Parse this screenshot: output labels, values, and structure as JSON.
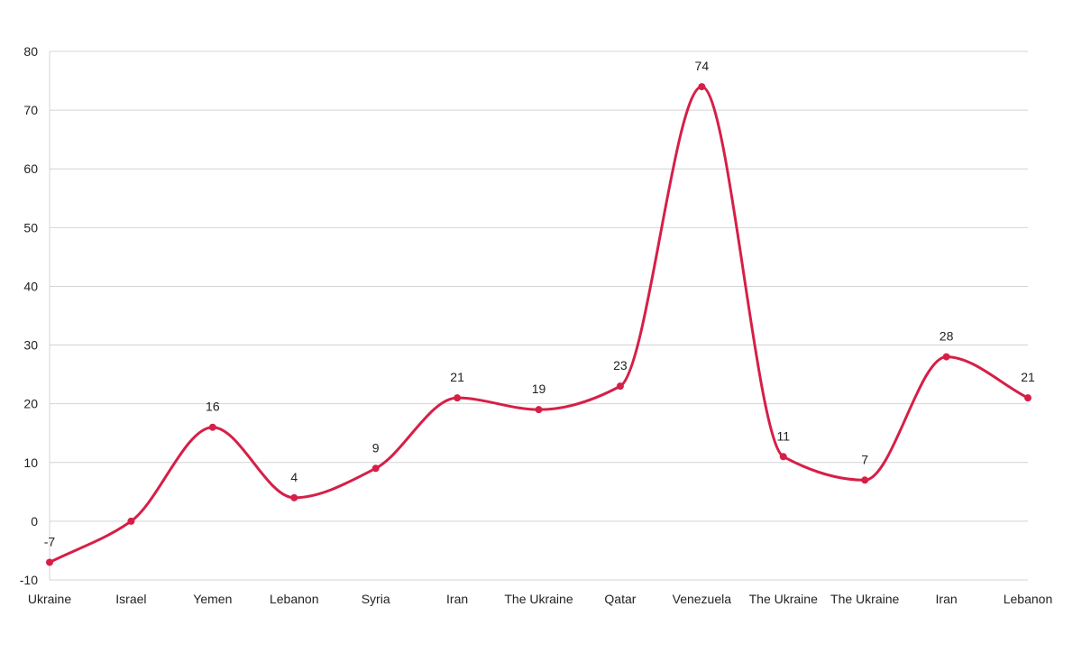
{
  "chart_data": {
    "type": "line",
    "categories": [
      "Ukraine",
      "Israel",
      "Yemen",
      "Lebanon",
      "Syria",
      "Iran",
      "The Ukraine",
      "Qatar",
      "Venezuela",
      "The Ukraine",
      "The Ukraine",
      "Iran",
      "Lebanon"
    ],
    "series": [
      {
        "values": [
          -7,
          0,
          16,
          4,
          9,
          21,
          19,
          23,
          74,
          11,
          7,
          28,
          21
        ],
        "color": "#d61f47"
      }
    ],
    "data_labels": [
      "-7",
      "",
      "16",
      "4",
      "9",
      "21",
      "19",
      "23",
      "74",
      "11",
      "7",
      "28",
      "21"
    ],
    "y_ticks": [
      -10,
      0,
      10,
      20,
      30,
      40,
      50,
      60,
      70,
      80
    ],
    "ylim": [
      -10,
      80
    ],
    "grid": true,
    "smooth": true,
    "legend": "none",
    "gridline_color": "#d4d4d4",
    "text_color": "#222222"
  }
}
